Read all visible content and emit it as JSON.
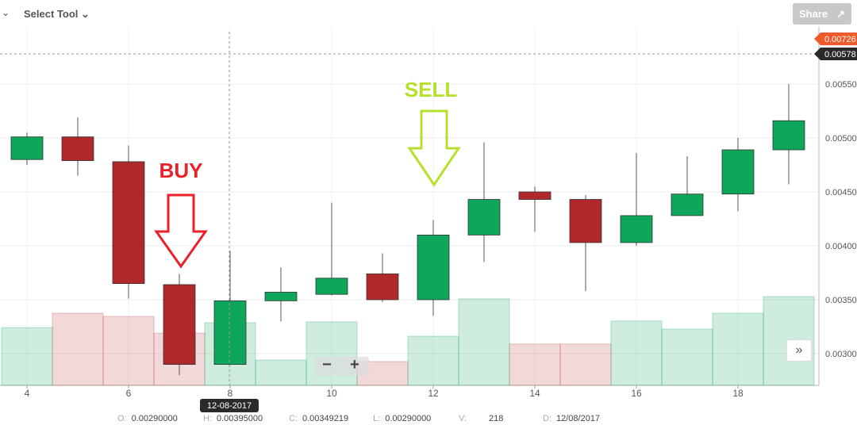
{
  "toolbar": {
    "select_tool": "Select Tool",
    "share": "Share"
  },
  "price_labels": {
    "high_marker": "0.00726",
    "last_marker": "0.00578",
    "high_color": "#ef5a2a",
    "last_color": "#2a2a2a"
  },
  "crosshair": {
    "date": "12-08-2017"
  },
  "ohlc": {
    "o_label": "O:",
    "o": "0.00290000",
    "h_label": "H:",
    "h": "0.00395000",
    "c_label": "C:",
    "c": "0.00349219",
    "l_label": "L:",
    "l": "0.00290000",
    "v_label": "V:",
    "v": "218",
    "d_label": "D:",
    "d": "12/08/2017"
  },
  "annotations": {
    "buy": "BUY",
    "sell": "SELL",
    "buy_color": "#e8212a",
    "sell_color": "#b5e02b"
  },
  "chart_data": {
    "type": "candlestick",
    "x": [
      4,
      5,
      6,
      7,
      8,
      9,
      10,
      11,
      12,
      13,
      14,
      15,
      16,
      17,
      18,
      19
    ],
    "xticks": [
      "4",
      "6",
      "8",
      "10",
      "12",
      "14",
      "16",
      "18"
    ],
    "yticks": [
      "0.00300",
      "0.00350",
      "0.00400",
      "0.00450",
      "0.00500",
      "0.00550"
    ],
    "ylim": [
      0.0027,
      0.00625
    ],
    "open": [
      0.0048,
      0.00501,
      0.00478,
      0.00364,
      0.0029,
      0.00349,
      0.00355,
      0.00374,
      0.0035,
      0.0041,
      0.0045,
      0.00443,
      0.00403,
      0.00428,
      0.00448,
      0.00489
    ],
    "high": [
      0.00505,
      0.00519,
      0.00493,
      0.00374,
      0.00395,
      0.0038,
      0.0044,
      0.00393,
      0.00424,
      0.00496,
      0.00455,
      0.00447,
      0.00486,
      0.00483,
      0.005,
      0.0055
    ],
    "low": [
      0.00475,
      0.00465,
      0.00351,
      0.0028,
      0.0029,
      0.0033,
      0.00354,
      0.00348,
      0.00335,
      0.00385,
      0.00413,
      0.00358,
      0.004,
      0.00428,
      0.00432,
      0.00457
    ],
    "close": [
      0.00501,
      0.00479,
      0.00365,
      0.0029,
      0.00349,
      0.00357,
      0.0037,
      0.0035,
      0.0041,
      0.00443,
      0.00443,
      0.00403,
      0.00428,
      0.00448,
      0.00489,
      0.00516
    ],
    "volume": [
      201,
      251,
      240,
      182,
      218,
      88,
      221,
      83,
      171,
      301,
      144,
      144,
      224,
      196,
      251,
      309
    ],
    "up_color": "#0ea65a",
    "down_color": "#b0282a",
    "grid": true
  }
}
